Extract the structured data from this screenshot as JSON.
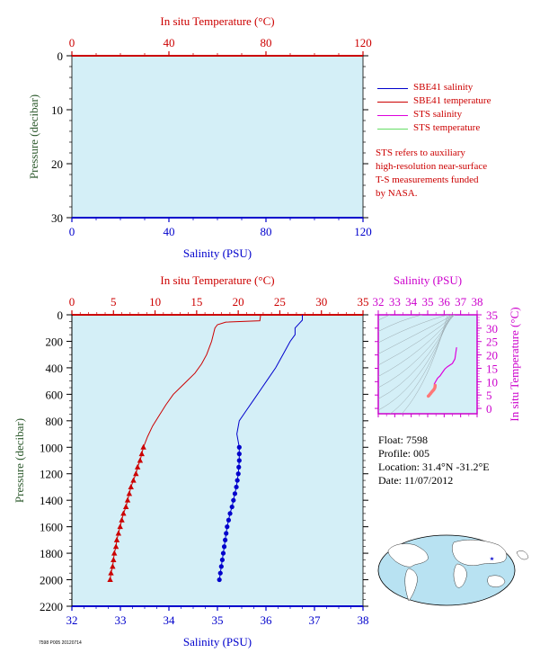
{
  "legend": {
    "items": [
      {
        "label": "SBE41 salinity",
        "color": "#0000cc"
      },
      {
        "label": "SBE41 temperature",
        "color": "#cc0000"
      },
      {
        "label": "STS salinity",
        "color": "#dd00dd"
      },
      {
        "label": "STS temperature",
        "color": "#66dd66"
      }
    ],
    "note_lines": [
      "STS refers to auxiliary",
      "high-resolution near-surface",
      "T-S measurements funded",
      "by NASA."
    ]
  },
  "float_info": {
    "float": "Float:  7598",
    "profile": "Profile:  005",
    "location": "Location:  31.4°N  -31.2°E",
    "date": "Date:  11/07/2012"
  },
  "footer_tag": "7598 P005 20120714",
  "colors": {
    "salinity": "#0000cc",
    "temperature": "#cc0000",
    "sts_salinity": "#dd00dd",
    "plot_bg": "#d4eff7",
    "pressure_label": "#2d5a2d",
    "ts_label": "#cc00cc"
  },
  "chart_data": [
    {
      "type": "line",
      "panel": "near-surface",
      "ylabel": "Pressure (decibar)",
      "x_top_label": "In situ Temperature (°C)",
      "x_bottom_label": "Salinity (PSU)",
      "ylim": [
        0,
        30
      ],
      "yticks": [
        0,
        10,
        20,
        30
      ],
      "xlim_top": [
        0,
        120
      ],
      "xticks_top": [
        0,
        40,
        80,
        120
      ],
      "xlim_bottom": [
        0,
        120
      ],
      "xticks_bottom": [
        0,
        40,
        80,
        120
      ],
      "series": []
    },
    {
      "type": "line",
      "panel": "profile",
      "ylabel": "Pressure (decibar)",
      "x_top_label": "In situ Temperature (°C)",
      "x_bottom_label": "Salinity (PSU)",
      "ylim": [
        0,
        2200
      ],
      "yticks": [
        0,
        200,
        400,
        600,
        800,
        1000,
        1200,
        1400,
        1600,
        1800,
        2000,
        2200
      ],
      "xlim_top": [
        0,
        35
      ],
      "xticks_top": [
        0,
        5,
        10,
        15,
        20,
        25,
        30,
        35
      ],
      "xlim_bottom": [
        32,
        38
      ],
      "xticks_bottom": [
        32,
        33,
        34,
        35,
        36,
        37,
        38
      ],
      "series": [
        {
          "axis": "top",
          "color": "#cc0000",
          "points": [
            [
              22.7,
              0
            ],
            [
              22.6,
              45
            ],
            [
              18.5,
              55
            ],
            [
              17.5,
              75
            ],
            [
              17.2,
              100
            ],
            [
              16.8,
              200
            ],
            [
              16.2,
              300
            ],
            [
              15.6,
              370
            ],
            [
              14.8,
              440
            ],
            [
              13.5,
              520
            ],
            [
              12.2,
              600
            ],
            [
              11.3,
              680
            ],
            [
              10.5,
              760
            ],
            [
              9.7,
              840
            ],
            [
              9.1,
              920
            ],
            [
              8.6,
              1000
            ],
            [
              8.4,
              1050
            ],
            [
              8.2,
              1100
            ],
            [
              7.9,
              1150
            ],
            [
              7.7,
              1200
            ],
            [
              7.4,
              1250
            ],
            [
              7.1,
              1300
            ],
            [
              6.9,
              1350
            ],
            [
              6.7,
              1400
            ],
            [
              6.5,
              1450
            ],
            [
              6.2,
              1500
            ],
            [
              6.0,
              1550
            ],
            [
              5.8,
              1600
            ],
            [
              5.6,
              1650
            ],
            [
              5.4,
              1700
            ],
            [
              5.3,
              1750
            ],
            [
              5.1,
              1800
            ],
            [
              5.0,
              1850
            ],
            [
              4.9,
              1900
            ],
            [
              4.7,
              1950
            ],
            [
              4.6,
              2000
            ]
          ],
          "markers": [
            [
              8.6,
              1000
            ],
            [
              8.4,
              1050
            ],
            [
              8.2,
              1100
            ],
            [
              7.9,
              1150
            ],
            [
              7.7,
              1200
            ],
            [
              7.4,
              1250
            ],
            [
              7.1,
              1300
            ],
            [
              6.9,
              1350
            ],
            [
              6.7,
              1400
            ],
            [
              6.5,
              1450
            ],
            [
              6.2,
              1500
            ],
            [
              6.0,
              1550
            ],
            [
              5.8,
              1600
            ],
            [
              5.6,
              1650
            ],
            [
              5.4,
              1700
            ],
            [
              5.3,
              1750
            ],
            [
              5.1,
              1800
            ],
            [
              5.0,
              1850
            ],
            [
              4.9,
              1900
            ],
            [
              4.7,
              1950
            ],
            [
              4.6,
              2000
            ]
          ],
          "marker": "triangle"
        },
        {
          "axis": "bottom",
          "color": "#0000cc",
          "points": [
            [
              36.75,
              0
            ],
            [
              36.75,
              40
            ],
            [
              36.7,
              60
            ],
            [
              36.6,
              100
            ],
            [
              36.6,
              150
            ],
            [
              36.5,
              200
            ],
            [
              36.35,
              300
            ],
            [
              36.2,
              400
            ],
            [
              36.05,
              480
            ],
            [
              35.9,
              560
            ],
            [
              35.75,
              640
            ],
            [
              35.6,
              720
            ],
            [
              35.45,
              800
            ],
            [
              35.4,
              900
            ],
            [
              35.45,
              1000
            ],
            [
              35.45,
              1050
            ],
            [
              35.45,
              1100
            ],
            [
              35.44,
              1150
            ],
            [
              35.43,
              1200
            ],
            [
              35.41,
              1250
            ],
            [
              35.39,
              1300
            ],
            [
              35.36,
              1350
            ],
            [
              35.33,
              1400
            ],
            [
              35.3,
              1450
            ],
            [
              35.26,
              1500
            ],
            [
              35.23,
              1550
            ],
            [
              35.2,
              1600
            ],
            [
              35.18,
              1650
            ],
            [
              35.16,
              1700
            ],
            [
              35.14,
              1750
            ],
            [
              35.12,
              1800
            ],
            [
              35.1,
              1850
            ],
            [
              35.08,
              1900
            ],
            [
              35.06,
              1950
            ],
            [
              35.04,
              2000
            ]
          ],
          "markers": [
            [
              35.45,
              1000
            ],
            [
              35.45,
              1050
            ],
            [
              35.45,
              1100
            ],
            [
              35.44,
              1150
            ],
            [
              35.43,
              1200
            ],
            [
              35.41,
              1250
            ],
            [
              35.39,
              1300
            ],
            [
              35.36,
              1350
            ],
            [
              35.33,
              1400
            ],
            [
              35.3,
              1450
            ],
            [
              35.26,
              1500
            ],
            [
              35.23,
              1550
            ],
            [
              35.2,
              1600
            ],
            [
              35.18,
              1650
            ],
            [
              35.16,
              1700
            ],
            [
              35.14,
              1750
            ],
            [
              35.12,
              1800
            ],
            [
              35.1,
              1850
            ],
            [
              35.08,
              1900
            ],
            [
              35.06,
              1950
            ],
            [
              35.04,
              2000
            ]
          ],
          "marker": "circle"
        }
      ]
    },
    {
      "type": "scatter",
      "panel": "T-S diagram",
      "xlabel": "Salinity (PSU)",
      "ylabel": "In situ Temperature (°C)",
      "xlim": [
        32,
        38
      ],
      "xticks": [
        32,
        33,
        34,
        35,
        36,
        37,
        38
      ],
      "ylim": [
        -2,
        35
      ],
      "yticks": [
        0,
        5,
        10,
        15,
        20,
        25,
        30,
        35
      ],
      "grid": "density contours",
      "series": [
        {
          "color": "#dd00dd",
          "points": [
            [
              36.75,
              22.7
            ],
            [
              36.65,
              18.5
            ],
            [
              36.5,
              16.8
            ],
            [
              36.35,
              16.2
            ],
            [
              36.2,
              15.6
            ],
            [
              36.05,
              14.8
            ],
            [
              35.9,
              13.5
            ],
            [
              35.75,
              12.2
            ],
            [
              35.6,
              11.3
            ],
            [
              35.45,
              9.7
            ],
            [
              35.4,
              9.1
            ]
          ]
        },
        {
          "color": "#ff7777",
          "points": [
            [
              35.45,
              8.6
            ],
            [
              35.44,
              7.9
            ],
            [
              35.41,
              7.4
            ],
            [
              35.36,
              6.9
            ],
            [
              35.3,
              6.5
            ],
            [
              35.23,
              6.0
            ],
            [
              35.18,
              5.6
            ],
            [
              35.14,
              5.3
            ],
            [
              35.1,
              5.0
            ],
            [
              35.06,
              4.7
            ],
            [
              35.04,
              4.6
            ]
          ]
        }
      ]
    }
  ]
}
